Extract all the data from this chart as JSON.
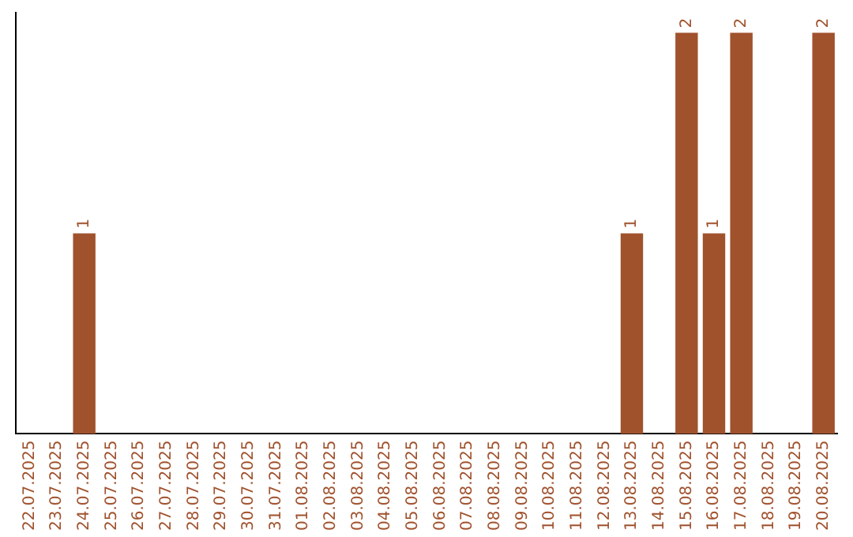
{
  "chart_data": {
    "type": "bar",
    "categories": [
      "22.07.2025",
      "23.07.2025",
      "24.07.2025",
      "25.07.2025",
      "26.07.2025",
      "27.07.2025",
      "28.07.2025",
      "29.07.2025",
      "30.07.2025",
      "31.07.2025",
      "01.08.2025",
      "02.08.2025",
      "03.08.2025",
      "04.08.2025",
      "05.08.2025",
      "06.08.2025",
      "07.08.2025",
      "08.08.2025",
      "09.08.2025",
      "10.08.2025",
      "11.08.2025",
      "12.08.2025",
      "13.08.2025",
      "14.08.2025",
      "15.08.2025",
      "16.08.2025",
      "17.08.2025",
      "18.08.2025",
      "19.08.2025",
      "20.08.2025"
    ],
    "values": [
      0,
      0,
      1,
      0,
      0,
      0,
      0,
      0,
      0,
      0,
      0,
      0,
      0,
      0,
      0,
      0,
      0,
      0,
      0,
      0,
      0,
      0,
      1,
      0,
      2,
      1,
      2,
      0,
      0,
      2
    ],
    "value_labels": [
      null,
      null,
      "1",
      null,
      null,
      null,
      null,
      null,
      null,
      null,
      null,
      null,
      null,
      null,
      null,
      null,
      null,
      null,
      null,
      null,
      null,
      null,
      "1",
      null,
      "2",
      "1",
      "2",
      null,
      null,
      "2"
    ],
    "color": "#a0522d",
    "ylim": [
      0,
      2.1
    ],
    "tick_labels": "x",
    "grid": false,
    "legend": false
  }
}
